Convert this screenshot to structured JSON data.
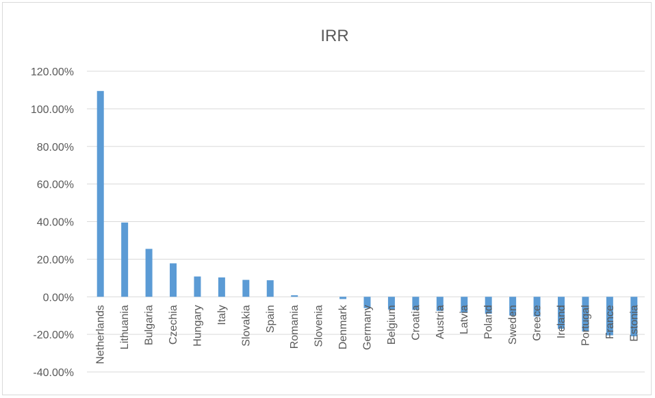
{
  "chart_data": {
    "type": "bar",
    "title": "IRR",
    "xlabel": "",
    "ylabel": "",
    "ylim": [
      -40,
      120
    ],
    "ytick_values": [
      -40,
      -20,
      0,
      20,
      40,
      60,
      80,
      100,
      120
    ],
    "ytick_labels": [
      "-40.00%",
      "-20.00%",
      "0.00%",
      "20.00%",
      "40.00%",
      "60.00%",
      "80.00%",
      "100.00%",
      "120.00%"
    ],
    "grid": true,
    "legend": "none",
    "categories": [
      "Netherlands",
      "Lithuania",
      "Bulgaria",
      "Czechia",
      "Hungary",
      "Italy",
      "Slovakia",
      "Spain",
      "Romania",
      "Slovenia",
      "Denmark",
      "Germany",
      "Belgium",
      "Croatia",
      "Austria",
      "Latvia",
      "Poland",
      "Sweden",
      "Greece",
      "Ireland",
      "Portugal",
      "France",
      "Estonia"
    ],
    "values": [
      109.5,
      39.5,
      25.5,
      17.8,
      10.8,
      10.3,
      9.0,
      8.8,
      0.8,
      0.0,
      -1.2,
      -6.0,
      -6.8,
      -7.0,
      -7.5,
      -8.5,
      -9.0,
      -10.0,
      -10.5,
      -17.0,
      -18.5,
      -20.5,
      -21.0
    ],
    "colors": {
      "bar": "#5b9bd5",
      "grid": "#d9d9d9",
      "text": "#595959"
    }
  }
}
